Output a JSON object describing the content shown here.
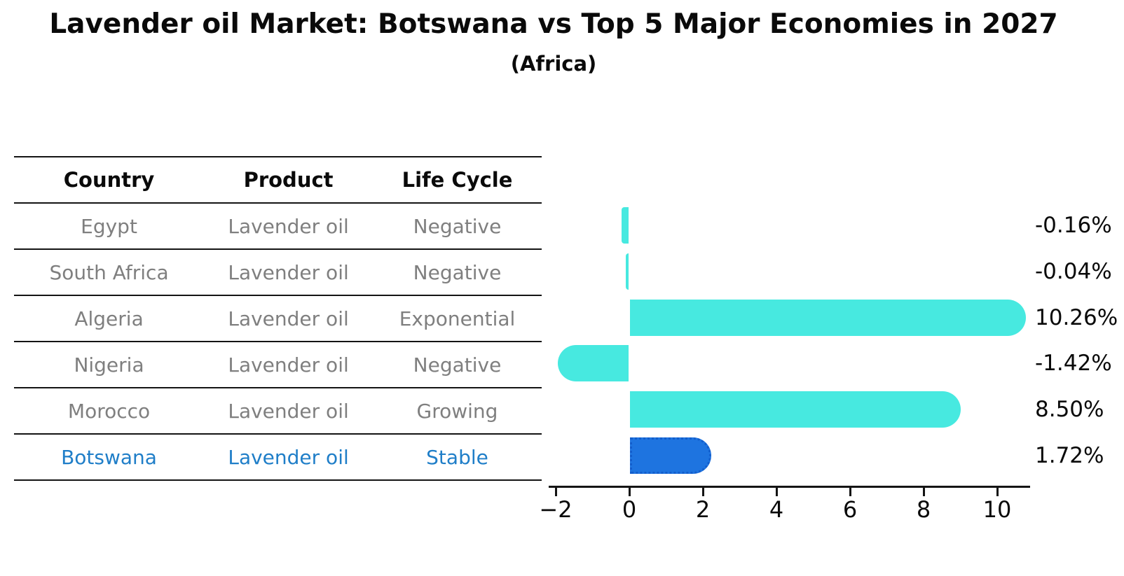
{
  "title": "Lavender oil Market: Botswana vs Top 5 Major Economies in 2027",
  "subtitle": "(Africa)",
  "table": {
    "headers": [
      "Country",
      "Product",
      "Life Cycle"
    ],
    "rows": [
      {
        "country": "Egypt",
        "product": "Lavender oil",
        "life_cycle": "Negative",
        "highlight": false
      },
      {
        "country": "South Africa",
        "product": "Lavender oil",
        "life_cycle": "Negative",
        "highlight": false
      },
      {
        "country": "Algeria",
        "product": "Lavender oil",
        "life_cycle": "Exponential",
        "highlight": false
      },
      {
        "country": "Nigeria",
        "product": "Lavender oil",
        "life_cycle": "Negative",
        "highlight": false
      },
      {
        "country": "Morocco",
        "product": "Lavender oil",
        "life_cycle": "Growing",
        "highlight": false
      },
      {
        "country": "Botswana",
        "product": "Lavender oil",
        "life_cycle": "Stable",
        "highlight": true
      }
    ]
  },
  "chart_data": {
    "type": "bar",
    "orientation": "horizontal",
    "categories": [
      "Egypt",
      "South Africa",
      "Algeria",
      "Nigeria",
      "Morocco",
      "Botswana"
    ],
    "values": [
      -0.16,
      -0.04,
      10.26,
      -1.42,
      8.5,
      1.72
    ],
    "value_labels": [
      "-0.16%",
      "-0.04%",
      "10.26%",
      "-1.42%",
      "8.50%",
      "1.72%"
    ],
    "x_ticks": [
      -2,
      0,
      2,
      4,
      6,
      8,
      10
    ],
    "x_tick_labels": [
      "−2",
      "0",
      "2",
      "4",
      "6",
      "8",
      "10"
    ],
    "xlim": [
      -2.2,
      10.9
    ],
    "grid": false,
    "legend": "none",
    "bar_color": "#47e9e0",
    "highlight_index": 5,
    "highlight_bar_color": "#1e74e0",
    "highlight_border_color": "#135ecc",
    "highlight_text_color": "#1f7ec8",
    "row_text_color": "#7f7f7f"
  }
}
